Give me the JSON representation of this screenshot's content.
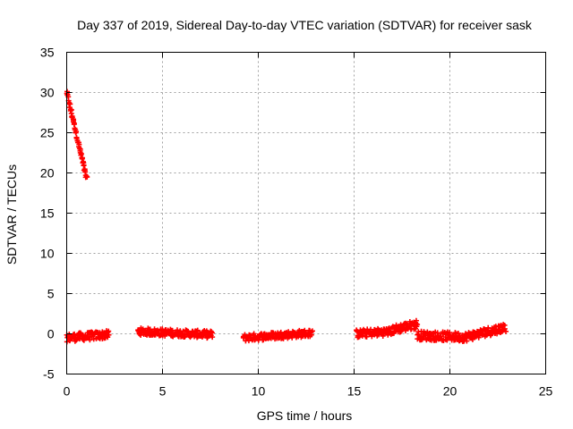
{
  "chart_data": {
    "type": "scatter",
    "title": "Day 337 of 2019, Sidereal Day-to-day VTEC variation (SDTVAR) for receiver sask",
    "xlabel": "GPS time / hours",
    "ylabel": "SDTVAR / TECUs",
    "xlim": [
      0,
      25
    ],
    "ylim": [
      -5,
      35
    ],
    "xticks": [
      0,
      5,
      10,
      15,
      20,
      25
    ],
    "yticks": [
      -5,
      0,
      5,
      10,
      15,
      20,
      25,
      30,
      35
    ],
    "grid": true,
    "marker": "plus",
    "color": "#ff0000",
    "segments": [
      {
        "x_start": 0.0,
        "x_end": 1.05,
        "y_start": 30.0,
        "y_end": 19.2,
        "noise": 0.3,
        "count": 60
      },
      {
        "x_start": 0.0,
        "x_end": 2.2,
        "y_start": -0.5,
        "y_end": -0.1,
        "noise": 0.5,
        "count": 90
      },
      {
        "x_start": 3.7,
        "x_end": 7.6,
        "y_start": 0.3,
        "y_end": -0.1,
        "noise": 0.45,
        "count": 160
      },
      {
        "x_start": 9.2,
        "x_end": 12.8,
        "y_start": -0.5,
        "y_end": 0.1,
        "noise": 0.45,
        "count": 140
      },
      {
        "x_start": 15.1,
        "x_end": 17.0,
        "y_start": 0.0,
        "y_end": 0.3,
        "noise": 0.5,
        "count": 80
      },
      {
        "x_start": 17.0,
        "x_end": 18.3,
        "y_start": 0.5,
        "y_end": 1.2,
        "noise": 0.55,
        "count": 60
      },
      {
        "x_start": 18.3,
        "x_end": 20.8,
        "y_start": -0.2,
        "y_end": -0.4,
        "noise": 0.55,
        "count": 100
      },
      {
        "x_start": 20.8,
        "x_end": 22.9,
        "y_start": -0.4,
        "y_end": 0.8,
        "noise": 0.55,
        "count": 90
      }
    ]
  }
}
